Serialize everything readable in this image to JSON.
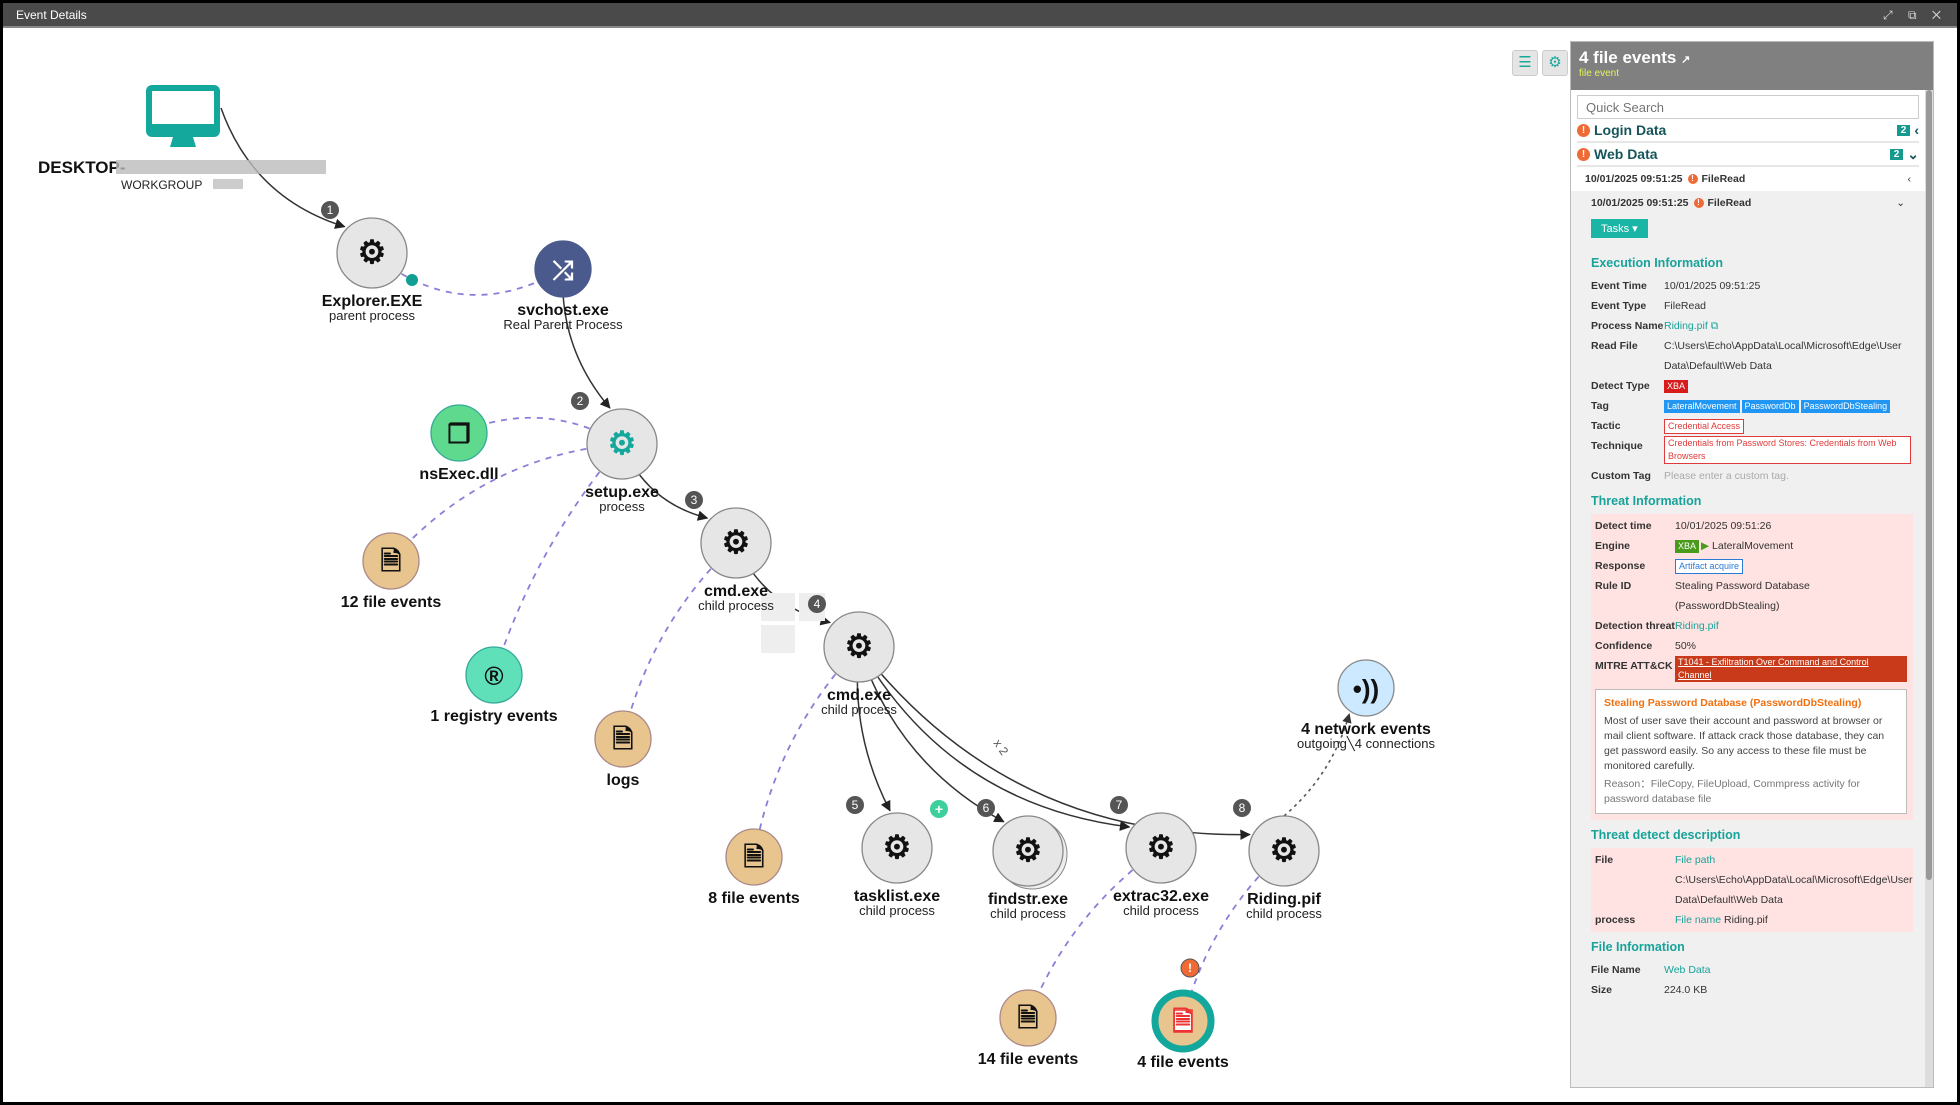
{
  "window": {
    "title": "Event Details",
    "controls": "⤢ ⧉ ✕"
  },
  "toolbar": {
    "list_icon": "list-icon",
    "settings_icon": "gear-icon"
  },
  "graph": {
    "host": {
      "name": "DESKTOP-",
      "domain": "WORKGROUP",
      "icon": "monitor-icon"
    },
    "nodes": [
      {
        "id": "explorer",
        "title": "Explorer.EXE",
        "sub": "parent process",
        "type": "process",
        "step": "1"
      },
      {
        "id": "svchost",
        "title": "svchost.exe",
        "sub": "Real Parent Process",
        "type": "shuffle"
      },
      {
        "id": "setup",
        "title": "setup.exe",
        "sub": "process",
        "type": "process-active",
        "step": "2"
      },
      {
        "id": "nsexec",
        "title": "nsExec.dll",
        "sub": "",
        "type": "module"
      },
      {
        "id": "file12",
        "title": "12 file events",
        "sub": "",
        "type": "file"
      },
      {
        "id": "reg1",
        "title": "1 registry events",
        "sub": "",
        "type": "registry"
      },
      {
        "id": "cmd1",
        "title": "cmd.exe",
        "sub": "child process",
        "type": "process",
        "step": "3"
      },
      {
        "id": "logs",
        "title": "logs",
        "sub": "",
        "type": "file"
      },
      {
        "id": "cmd2",
        "title": "cmd.exe",
        "sub": "child process",
        "type": "process",
        "step": "4"
      },
      {
        "id": "file8",
        "title": "8 file events",
        "sub": "",
        "type": "file"
      },
      {
        "id": "tasklist",
        "title": "tasklist.exe",
        "sub": "child process",
        "type": "process",
        "step": "5"
      },
      {
        "id": "findstr",
        "title": "findstr.exe",
        "sub": "child process",
        "type": "process",
        "step": "6"
      },
      {
        "id": "extrac32",
        "title": "extrac32.exe",
        "sub": "child process",
        "type": "process",
        "step": "7"
      },
      {
        "id": "riding",
        "title": "Riding.pif",
        "sub": "child process",
        "type": "process",
        "step": "8"
      },
      {
        "id": "net4",
        "title": "4 network events",
        "sub": "outgoing╲4 connections",
        "type": "network"
      },
      {
        "id": "file14",
        "title": "14 file events",
        "sub": "",
        "type": "file"
      },
      {
        "id": "file4",
        "title": "4 file events",
        "sub": "",
        "type": "file-selected"
      }
    ],
    "edge_label_findstr": "x 2",
    "colors": {
      "process": "#e6e6e6",
      "file": "#e8c48e",
      "module": "#5fd98e",
      "registry": "#5fe0b8",
      "shuffle": "#4a5a8c",
      "network": "#cde9ff",
      "teal": "#14a89c",
      "dashed": "#8a7fd8"
    }
  },
  "panel": {
    "title": "4 file events",
    "subtitle": "file event",
    "search_placeholder": "Quick Search",
    "groups": [
      {
        "label": "Login Data",
        "count": "2",
        "chev": "‹"
      },
      {
        "label": "Web Data",
        "count": "2",
        "chev": "⌄"
      }
    ],
    "events": [
      {
        "time": "10/01/2025 09:51:25",
        "type": "FileRead",
        "chev": "‹"
      },
      {
        "time": "10/01/2025 09:51:25",
        "type": "FileRead",
        "chev": "⌄"
      }
    ],
    "tasks_label": "Tasks ▾",
    "exec": {
      "heading": "Execution Information",
      "event_time_k": "Event Time",
      "event_time": "10/01/2025 09:51:25",
      "event_type_k": "Event Type",
      "event_type": "FileRead",
      "process_name_k": "Process Name",
      "process_name": "Riding.pif",
      "read_file_k": "Read File",
      "read_file": "C:\\Users\\Echo\\AppData\\Local\\Microsoft\\Edge\\User Data\\Default\\Web Data",
      "detect_type_k": "Detect Type",
      "detect_type": "XBA",
      "tag_k": "Tag",
      "tags": [
        "LateralMovement",
        "PasswordDb",
        "PasswordDbStealing"
      ],
      "tactic_k": "Tactic",
      "tactic": "Credential Access",
      "technique_k": "Technique",
      "technique": "Credentials from Password Stores: Credentials from Web Browsers",
      "custom_tag_k": "Custom Tag",
      "custom_tag_placeholder": "Please enter a custom tag."
    },
    "threat": {
      "heading": "Threat Information",
      "detect_time_k": "Detect time",
      "detect_time": "10/01/2025 09:51:26",
      "engine_k": "Engine",
      "engine_badge": "XBA",
      "engine": "LateralMovement",
      "response_k": "Response",
      "response": "Artifact acquire",
      "rule_k": "Rule ID",
      "rule": "Stealing Password Database (PasswordDbStealing)",
      "detection_k": "Detection threat",
      "detection": "Riding.pif",
      "confidence_k": "Confidence",
      "confidence": "50%",
      "mitre_k": "MITRE ATT&CK",
      "mitre": "T1041 - Exfiltration Over Command and Control Channel",
      "desc_title": "Stealing Password Database (PasswordDbStealing)",
      "desc": "Most of user save their account and password at browser or mail client software. If attack crack those database, they can get password easily. So any access to these file must be monitored carefully.",
      "reason": "Reason：FileCopy, FileUpload, Commpress activity for password database file"
    },
    "tdd": {
      "heading": "Threat detect description",
      "file_k": "File",
      "file_label": "File path",
      "file_path": "C:\\Users\\Echo\\AppData\\Local\\Microsoft\\Edge\\User Data\\Default\\Web Data",
      "process_k": "process",
      "process_label": "File name",
      "process_name": "Riding.pif"
    },
    "fileinfo": {
      "heading": "File Information",
      "name_k": "File Name",
      "name": "Web Data",
      "size_k": "Size",
      "size": "224.0 KB"
    }
  }
}
